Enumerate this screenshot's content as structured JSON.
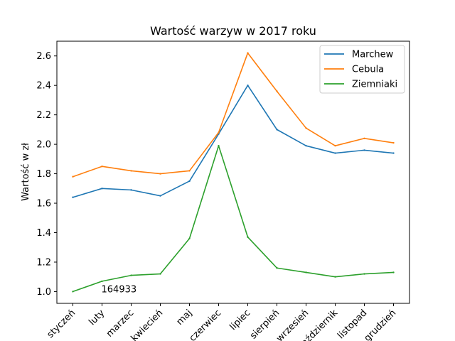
{
  "chart_data": {
    "type": "line",
    "title": "Wartość warzyw w 2017 roku",
    "xlabel": "",
    "ylabel": "Wartość w zł",
    "categories": [
      "styczeń",
      "luty",
      "marzec",
      "kwiecień",
      "maj",
      "czerwiec",
      "lipiec",
      "sierpień",
      "wrzesień",
      "październik",
      "listopad",
      "grudzień"
    ],
    "series": [
      {
        "name": "Marchew",
        "color": "#1f77b4",
        "values": [
          1.64,
          1.7,
          1.69,
          1.65,
          1.75,
          2.07,
          2.4,
          2.1,
          1.99,
          1.94,
          1.96,
          1.94
        ]
      },
      {
        "name": "Cebula",
        "color": "#ff7f0e",
        "values": [
          1.78,
          1.85,
          1.82,
          1.8,
          1.82,
          2.08,
          2.62,
          2.36,
          2.11,
          1.99,
          2.04,
          2.01
        ]
      },
      {
        "name": "Ziemniaki",
        "color": "#2ca02c",
        "values": [
          1.0,
          1.07,
          1.11,
          1.12,
          1.36,
          1.99,
          1.37,
          1.16,
          1.13,
          1.1,
          1.12,
          1.13
        ]
      }
    ],
    "ylim": [
      0.92,
      2.7
    ],
    "yticks": [
      1.0,
      1.2,
      1.4,
      1.6,
      1.8,
      2.0,
      2.2,
      2.4,
      2.6
    ],
    "ytick_labels": [
      "1.0",
      "1.2",
      "1.4",
      "1.6",
      "1.8",
      "2.0",
      "2.2",
      "2.4",
      "2.6"
    ],
    "legend_position": "top-right",
    "grid": false,
    "annotation": {
      "text": "164933",
      "x": "luty",
      "y": 1.0
    }
  }
}
